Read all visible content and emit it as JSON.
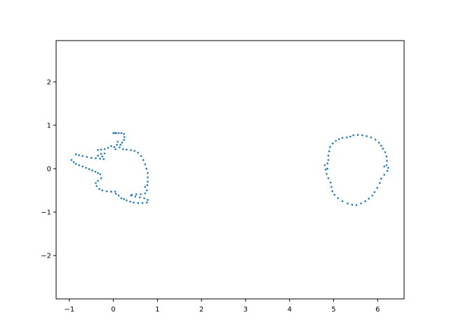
{
  "chart_data": {
    "type": "scatter",
    "title": "",
    "xlabel": "",
    "ylabel": "",
    "xlim": [
      -1.3,
      6.6
    ],
    "ylim": [
      -3.0,
      2.95
    ],
    "xticks": [
      -1,
      0,
      1,
      2,
      3,
      4,
      5,
      6
    ],
    "yticks": [
      -2,
      -1,
      0,
      1,
      2
    ],
    "xtick_labels": [
      "−1",
      "0",
      "1",
      "2",
      "3",
      "4",
      "5",
      "6"
    ],
    "ytick_labels": [
      "−2",
      "−1",
      "0",
      "1",
      "2"
    ],
    "grid": false,
    "legend": "none",
    "marker_color": "#1f77b4",
    "series": [
      {
        "points": [
          [
            -0.95,
            0.2
          ],
          [
            -0.9,
            0.15
          ],
          [
            -0.85,
            0.11
          ],
          [
            -0.78,
            0.08
          ],
          [
            -0.7,
            0.05
          ],
          [
            -0.62,
            0.02
          ],
          [
            -0.55,
            -0.01
          ],
          [
            -0.48,
            -0.04
          ],
          [
            -0.41,
            -0.07
          ],
          [
            -0.35,
            -0.1
          ],
          [
            -0.3,
            -0.13
          ],
          [
            -0.28,
            -0.22
          ],
          [
            -0.35,
            -0.28
          ],
          [
            -0.4,
            -0.33
          ],
          [
            -0.38,
            -0.4
          ],
          [
            -0.32,
            -0.47
          ],
          [
            -0.25,
            -0.5
          ],
          [
            -0.15,
            -0.52
          ],
          [
            -0.05,
            -0.53
          ],
          [
            -0.85,
            0.33
          ],
          [
            -0.78,
            0.31
          ],
          [
            -0.7,
            0.29
          ],
          [
            -0.6,
            0.27
          ],
          [
            -0.5,
            0.25
          ],
          [
            -0.4,
            0.24
          ],
          [
            -0.3,
            0.23
          ],
          [
            -0.22,
            0.22
          ],
          [
            -0.35,
            0.3
          ],
          [
            -0.28,
            0.34
          ],
          [
            -0.2,
            0.35
          ],
          [
            -0.25,
            0.28
          ],
          [
            -0.35,
            0.43
          ],
          [
            -0.28,
            0.44
          ],
          [
            -0.2,
            0.45
          ],
          [
            -0.12,
            0.48
          ],
          [
            -0.05,
            0.52
          ],
          [
            0.02,
            0.5
          ],
          [
            0.05,
            0.45
          ],
          [
            0.08,
            0.55
          ],
          [
            0.1,
            0.62
          ],
          [
            0.0,
            0.82
          ],
          [
            0.06,
            0.82
          ],
          [
            0.12,
            0.82
          ],
          [
            0.18,
            0.82
          ],
          [
            0.24,
            0.8
          ],
          [
            0.25,
            0.73
          ],
          [
            0.24,
            0.66
          ],
          [
            0.2,
            0.6
          ],
          [
            0.16,
            0.55
          ],
          [
            0.14,
            0.49
          ],
          [
            0.22,
            0.45
          ],
          [
            0.3,
            0.44
          ],
          [
            0.4,
            0.43
          ],
          [
            0.48,
            0.41
          ],
          [
            0.56,
            0.37
          ],
          [
            0.63,
            0.29
          ],
          [
            0.68,
            0.2
          ],
          [
            0.72,
            0.1
          ],
          [
            0.75,
            0.0
          ],
          [
            0.78,
            -0.1
          ],
          [
            0.78,
            -0.2
          ],
          [
            0.78,
            -0.3
          ],
          [
            0.77,
            -0.38
          ],
          [
            0.72,
            -0.42
          ],
          [
            0.76,
            -0.5
          ],
          [
            0.72,
            -0.57
          ],
          [
            0.62,
            -0.59
          ],
          [
            0.52,
            -0.59
          ],
          [
            0.42,
            -0.6
          ],
          [
            0.4,
            -0.62
          ],
          [
            0.5,
            -0.64
          ],
          [
            0.6,
            -0.66
          ],
          [
            0.7,
            -0.68
          ],
          [
            0.78,
            -0.72
          ],
          [
            0.76,
            -0.78
          ],
          [
            0.66,
            -0.79
          ],
          [
            0.56,
            -0.79
          ],
          [
            0.46,
            -0.78
          ],
          [
            0.38,
            -0.76
          ],
          [
            0.3,
            -0.73
          ],
          [
            0.24,
            -0.7
          ],
          [
            0.18,
            -0.68
          ],
          [
            0.12,
            -0.62
          ],
          [
            0.06,
            -0.58
          ],
          [
            0.04,
            -0.53
          ],
          [
            -0.05,
            -0.53
          ],
          [
            0.04,
            0.82
          ]
        ]
      },
      {
        "points": [
          [
            5.45,
            0.77
          ],
          [
            5.55,
            0.78
          ],
          [
            5.65,
            0.77
          ],
          [
            5.75,
            0.75
          ],
          [
            5.85,
            0.72
          ],
          [
            5.95,
            0.67
          ],
          [
            6.03,
            0.6
          ],
          [
            6.08,
            0.53
          ],
          [
            6.12,
            0.46
          ],
          [
            6.17,
            0.38
          ],
          [
            6.2,
            0.28
          ],
          [
            6.21,
            0.18
          ],
          [
            6.2,
            0.08
          ],
          [
            6.24,
            0.02
          ],
          [
            6.22,
            -0.05
          ],
          [
            6.15,
            -0.14
          ],
          [
            6.08,
            -0.23
          ],
          [
            6.05,
            -0.33
          ],
          [
            5.99,
            -0.44
          ],
          [
            5.93,
            -0.54
          ],
          [
            5.88,
            -0.62
          ],
          [
            5.8,
            -0.69
          ],
          [
            5.72,
            -0.75
          ],
          [
            5.62,
            -0.8
          ],
          [
            5.52,
            -0.84
          ],
          [
            5.42,
            -0.83
          ],
          [
            5.32,
            -0.8
          ],
          [
            5.2,
            -0.75
          ],
          [
            5.1,
            -0.68
          ],
          [
            5.02,
            -0.6
          ],
          [
            4.97,
            -0.52
          ],
          [
            4.95,
            -0.42
          ],
          [
            4.93,
            -0.32
          ],
          [
            4.88,
            -0.22
          ],
          [
            4.84,
            -0.12
          ],
          [
            4.82,
            -0.02
          ],
          [
            4.8,
            0.08
          ],
          [
            4.86,
            0.12
          ],
          [
            4.88,
            0.2
          ],
          [
            4.88,
            0.3
          ],
          [
            4.9,
            0.4
          ],
          [
            4.92,
            0.5
          ],
          [
            4.98,
            0.58
          ],
          [
            5.05,
            0.64
          ],
          [
            5.12,
            0.68
          ],
          [
            5.2,
            0.71
          ],
          [
            5.3,
            0.72
          ],
          [
            5.38,
            0.74
          ],
          [
            6.15,
            0.05
          ],
          [
            4.86,
            0.0
          ]
        ]
      }
    ]
  }
}
